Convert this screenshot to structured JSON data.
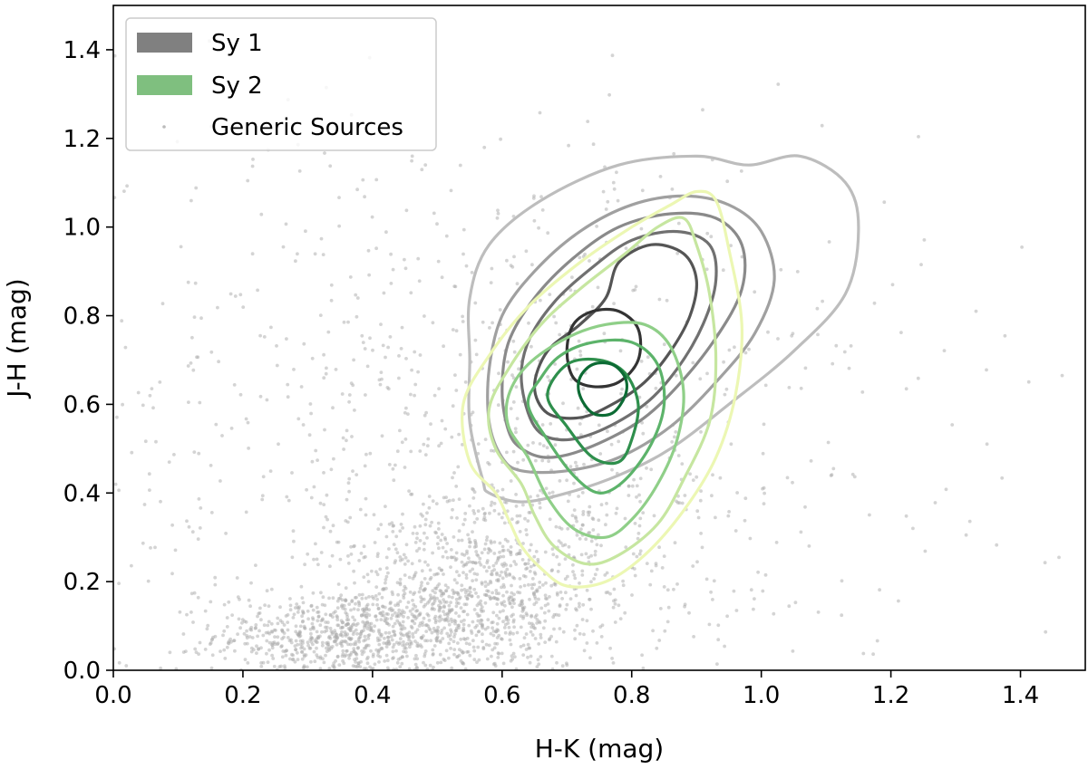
{
  "chart_data": {
    "type": "scatter",
    "title": "",
    "xlabel": "H-K (mag)",
    "ylabel": "J-H (mag)",
    "xlim": [
      0.0,
      1.5
    ],
    "ylim": [
      0.0,
      1.5
    ],
    "x_ticks": [
      "0.0",
      "0.2",
      "0.4",
      "0.6",
      "0.8",
      "1.0",
      "1.2",
      "1.4"
    ],
    "y_ticks": [
      "0.0",
      "0.2",
      "0.4",
      "0.6",
      "0.8",
      "1.0",
      "1.2",
      "1.4"
    ],
    "grid": false,
    "legend_position": "top-left",
    "legend": [
      {
        "label": "Sy 1",
        "color": "#808080",
        "kind": "patch"
      },
      {
        "label": "Sy 2",
        "color": "#7fbf7f",
        "kind": "patch"
      },
      {
        "label": "Generic Sources",
        "color": "#bbbbbb",
        "kind": "marker"
      }
    ],
    "series": [
      {
        "name": "Generic Sources",
        "type": "scatter",
        "color": "#aaaaaa",
        "clusters": [
          {
            "cx": 0.36,
            "cy": 0.08,
            "sx": 0.1,
            "sy": 0.045,
            "n": 700
          },
          {
            "cx": 0.55,
            "cy": 0.16,
            "sx": 0.1,
            "sy": 0.08,
            "n": 650
          },
          {
            "cx": 0.65,
            "cy": 0.3,
            "sx": 0.13,
            "sy": 0.14,
            "n": 350
          },
          {
            "cx": 0.55,
            "cy": 0.55,
            "sx": 0.35,
            "sy": 0.35,
            "n": 900
          }
        ]
      },
      {
        "name": "Sy 1",
        "type": "kde_contours",
        "colors": [
          "#bdbdbd",
          "#a0a0a0",
          "#8a8a8a",
          "#707070",
          "#555555",
          "#333333"
        ],
        "levels": [
          [
            [
              0.57,
              0.43
            ],
            [
              0.58,
              0.4
            ],
            [
              0.63,
              0.38
            ],
            [
              0.7,
              0.4
            ],
            [
              0.78,
              0.44
            ],
            [
              0.86,
              0.5
            ],
            [
              0.95,
              0.6
            ],
            [
              1.05,
              0.72
            ],
            [
              1.13,
              0.85
            ],
            [
              1.15,
              1.0
            ],
            [
              1.13,
              1.1
            ],
            [
              1.06,
              1.16
            ],
            [
              0.98,
              1.14
            ],
            [
              0.9,
              1.16
            ],
            [
              0.78,
              1.14
            ],
            [
              0.66,
              1.06
            ],
            [
              0.58,
              0.96
            ],
            [
              0.55,
              0.84
            ],
            [
              0.55,
              0.7
            ],
            [
              0.55,
              0.56
            ]
          ],
          [
            [
              0.6,
              0.48
            ],
            [
              0.63,
              0.45
            ],
            [
              0.7,
              0.45
            ],
            [
              0.78,
              0.48
            ],
            [
              0.86,
              0.55
            ],
            [
              0.93,
              0.65
            ],
            [
              0.99,
              0.76
            ],
            [
              1.02,
              0.88
            ],
            [
              1.0,
              0.99
            ],
            [
              0.95,
              1.05
            ],
            [
              0.88,
              1.07
            ],
            [
              0.8,
              1.05
            ],
            [
              0.72,
              0.99
            ],
            [
              0.65,
              0.9
            ],
            [
              0.6,
              0.8
            ],
            [
              0.58,
              0.68
            ],
            [
              0.58,
              0.56
            ]
          ],
          [
            [
              0.63,
              0.5
            ],
            [
              0.67,
              0.48
            ],
            [
              0.73,
              0.5
            ],
            [
              0.81,
              0.56
            ],
            [
              0.87,
              0.64
            ],
            [
              0.93,
              0.75
            ],
            [
              0.97,
              0.86
            ],
            [
              0.97,
              0.96
            ],
            [
              0.93,
              1.02
            ],
            [
              0.86,
              1.03
            ],
            [
              0.78,
              1.0
            ],
            [
              0.71,
              0.93
            ],
            [
              0.65,
              0.84
            ],
            [
              0.61,
              0.74
            ],
            [
              0.6,
              0.63
            ],
            [
              0.61,
              0.54
            ]
          ],
          [
            [
              0.65,
              0.55
            ],
            [
              0.69,
              0.52
            ],
            [
              0.75,
              0.54
            ],
            [
              0.82,
              0.6
            ],
            [
              0.87,
              0.68
            ],
            [
              0.91,
              0.78
            ],
            [
              0.93,
              0.88
            ],
            [
              0.92,
              0.96
            ],
            [
              0.87,
              0.99
            ],
            [
              0.8,
              0.97
            ],
            [
              0.74,
              0.91
            ],
            [
              0.68,
              0.83
            ],
            [
              0.64,
              0.74
            ],
            [
              0.63,
              0.65
            ]
          ],
          [
            [
              0.67,
              0.58
            ],
            [
              0.72,
              0.57
            ],
            [
              0.77,
              0.6
            ],
            [
              0.82,
              0.65
            ],
            [
              0.86,
              0.72
            ],
            [
              0.89,
              0.8
            ],
            [
              0.9,
              0.88
            ],
            [
              0.88,
              0.94
            ],
            [
              0.83,
              0.96
            ],
            [
              0.78,
              0.92
            ],
            [
              0.76,
              0.84
            ],
            [
              0.72,
              0.78
            ],
            [
              0.67,
              0.72
            ],
            [
              0.65,
              0.64
            ]
          ],
          [
            [
              0.71,
              0.66
            ],
            [
              0.74,
              0.64
            ],
            [
              0.78,
              0.65
            ],
            [
              0.81,
              0.7
            ],
            [
              0.81,
              0.77
            ],
            [
              0.78,
              0.81
            ],
            [
              0.74,
              0.81
            ],
            [
              0.71,
              0.78
            ],
            [
              0.7,
              0.72
            ]
          ]
        ]
      },
      {
        "name": "Sy 2",
        "type": "kde_contours",
        "colors": [
          "#ecf7b3",
          "#c6e6a0",
          "#8fcf88",
          "#5cb36a",
          "#2e8f4c",
          "#0c6b34"
        ],
        "levels": [
          [
            [
              0.55,
              0.47
            ],
            [
              0.59,
              0.4
            ],
            [
              0.61,
              0.34
            ],
            [
              0.63,
              0.28
            ],
            [
              0.66,
              0.23
            ],
            [
              0.7,
              0.19
            ],
            [
              0.76,
              0.2
            ],
            [
              0.82,
              0.26
            ],
            [
              0.88,
              0.36
            ],
            [
              0.93,
              0.48
            ],
            [
              0.96,
              0.62
            ],
            [
              0.97,
              0.78
            ],
            [
              0.95,
              0.95
            ],
            [
              0.93,
              1.06
            ],
            [
              0.9,
              1.08
            ],
            [
              0.86,
              1.05
            ],
            [
              0.8,
              1.0
            ],
            [
              0.72,
              0.92
            ],
            [
              0.64,
              0.82
            ],
            [
              0.58,
              0.71
            ],
            [
              0.54,
              0.6
            ]
          ],
          [
            [
              0.59,
              0.5
            ],
            [
              0.63,
              0.42
            ],
            [
              0.65,
              0.35
            ],
            [
              0.68,
              0.28
            ],
            [
              0.73,
              0.24
            ],
            [
              0.78,
              0.26
            ],
            [
              0.84,
              0.33
            ],
            [
              0.88,
              0.43
            ],
            [
              0.92,
              0.56
            ],
            [
              0.93,
              0.7
            ],
            [
              0.92,
              0.85
            ],
            [
              0.9,
              0.96
            ],
            [
              0.88,
              1.02
            ],
            [
              0.84,
              1.0
            ],
            [
              0.79,
              0.94
            ],
            [
              0.72,
              0.86
            ],
            [
              0.66,
              0.78
            ],
            [
              0.61,
              0.68
            ],
            [
              0.58,
              0.59
            ]
          ],
          [
            [
              0.61,
              0.55
            ],
            [
              0.64,
              0.48
            ],
            [
              0.67,
              0.39
            ],
            [
              0.71,
              0.32
            ],
            [
              0.76,
              0.3
            ],
            [
              0.8,
              0.34
            ],
            [
              0.84,
              0.42
            ],
            [
              0.87,
              0.52
            ],
            [
              0.88,
              0.63
            ],
            [
              0.86,
              0.73
            ],
            [
              0.82,
              0.78
            ],
            [
              0.76,
              0.78
            ],
            [
              0.7,
              0.75
            ],
            [
              0.64,
              0.69
            ],
            [
              0.61,
              0.62
            ]
          ],
          [
            [
              0.64,
              0.6
            ],
            [
              0.67,
              0.52
            ],
            [
              0.71,
              0.44
            ],
            [
              0.75,
              0.4
            ],
            [
              0.79,
              0.43
            ],
            [
              0.83,
              0.51
            ],
            [
              0.85,
              0.6
            ],
            [
              0.84,
              0.69
            ],
            [
              0.8,
              0.74
            ],
            [
              0.74,
              0.74
            ],
            [
              0.69,
              0.71
            ],
            [
              0.66,
              0.66
            ]
          ],
          [
            [
              0.67,
              0.62
            ],
            [
              0.7,
              0.55
            ],
            [
              0.74,
              0.48
            ],
            [
              0.78,
              0.47
            ],
            [
              0.8,
              0.52
            ],
            [
              0.81,
              0.6
            ],
            [
              0.79,
              0.67
            ],
            [
              0.75,
              0.7
            ],
            [
              0.7,
              0.69
            ]
          ],
          [
            [
              0.72,
              0.62
            ],
            [
              0.74,
              0.58
            ],
            [
              0.77,
              0.58
            ],
            [
              0.79,
              0.62
            ],
            [
              0.79,
              0.66
            ],
            [
              0.77,
              0.69
            ],
            [
              0.74,
              0.69
            ],
            [
              0.72,
              0.66
            ]
          ]
        ]
      }
    ]
  }
}
